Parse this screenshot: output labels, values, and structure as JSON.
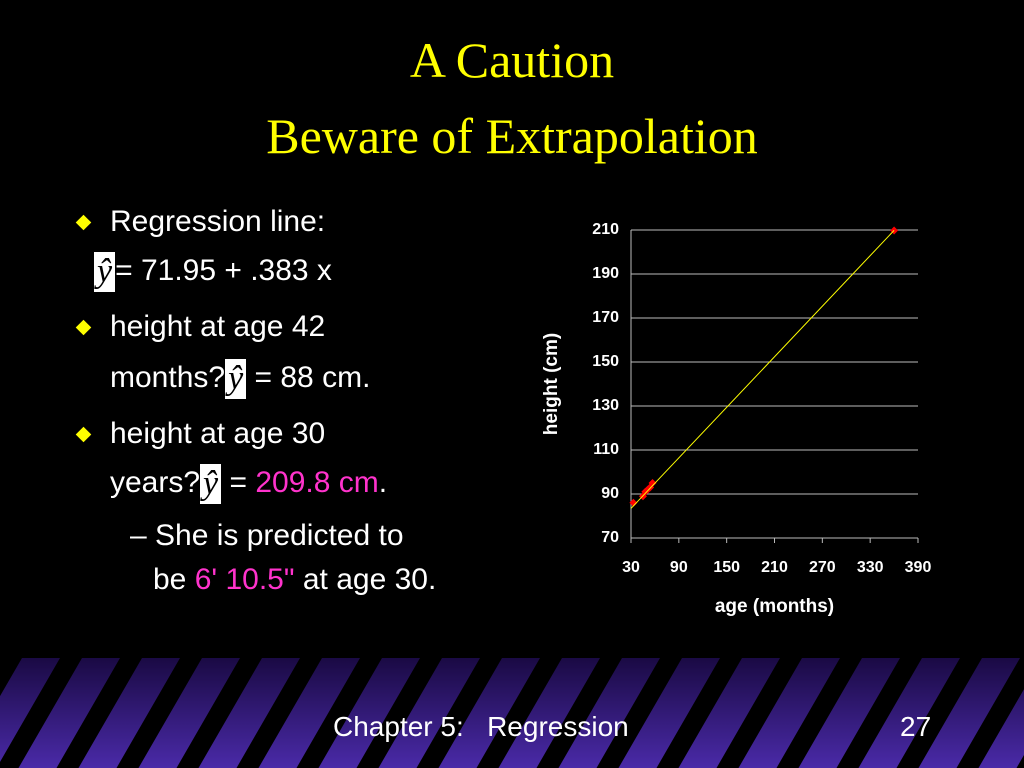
{
  "header": {
    "title_lines": [
      "A Caution",
      "Beware of Extrapolation"
    ]
  },
  "y_hat_symbol": "ŷ",
  "bullets": [
    {
      "lines": [
        "Regression line:",
        "= 71.95 + .383 x"
      ]
    },
    {
      "lines": [
        "height at age 42",
        "months?",
        "= 88 cm."
      ]
    },
    {
      "lines": [
        "height at age 30",
        "years?",
        "=",
        "209.8 cm",
        "."
      ]
    },
    {
      "lines": [
        "She is predicted to",
        "be",
        "6' 10.5\"",
        "at age 30."
      ]
    }
  ],
  "chart_data": {
    "type": "scatter",
    "x_label": "age (months)",
    "y_label": "height (cm)",
    "xlim": [
      30,
      390
    ],
    "xticks": [
      30,
      90,
      150,
      210,
      270,
      330,
      390
    ],
    "ylim": [
      70,
      210
    ],
    "yticks": [
      70,
      90,
      110,
      130,
      150,
      170,
      190,
      210
    ],
    "grid": true,
    "series": [
      {
        "color": "#ff0000",
        "mode": "markers",
        "x": [
          33,
          45,
          48,
          51,
          54,
          57,
          360
        ],
        "values": [
          86,
          89,
          91,
          92,
          93,
          95,
          209.8
        ]
      },
      {
        "color": "#ffff00",
        "mode": "line",
        "x": [
          30,
          360
        ],
        "values": [
          83.44,
          209.83
        ]
      }
    ]
  },
  "footer": {
    "chapter": "Chapter 5:   Regression",
    "page": "27"
  }
}
